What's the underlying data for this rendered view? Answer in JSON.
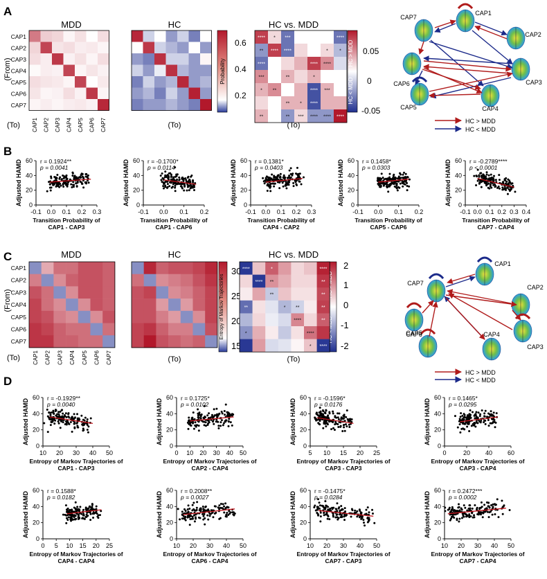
{
  "panel_letters": {
    "a": "A",
    "b": "B",
    "c": "C",
    "d": "D"
  },
  "common": {
    "from_label": "(From)",
    "to_label": "(To)",
    "caps": [
      "CAP1",
      "CAP2",
      "CAP3",
      "CAP4",
      "CAP5",
      "CAP6",
      "CAP7"
    ],
    "legend_hc_gt": "HC > MDD",
    "legend_hc_lt": "HC < MDD",
    "colors": {
      "red": "#b2182b",
      "blue": "#1f3c99",
      "arrow_red": "#b01b1b",
      "arrow_blue": "#1b2a8a"
    }
  },
  "panel_a": {
    "titles": [
      "MDD",
      "HC",
      "HC vs. MDD"
    ],
    "prob_colorbar": {
      "label": "Probability",
      "ticks": [
        "0.6",
        "0.4",
        "0.2"
      ]
    },
    "diff_colorbar": {
      "ticks": [
        "0.05",
        "0",
        "-0.05"
      ],
      "top_label": "HC > MDD",
      "bottom_label": "HC < MDD"
    },
    "mdd": [
      [
        0.42,
        0.22,
        0.2,
        0.12,
        0.17,
        0.1,
        0.18
      ],
      [
        0.2,
        0.55,
        0.16,
        0.18,
        0.14,
        0.15,
        0.12
      ],
      [
        0.18,
        0.14,
        0.58,
        0.13,
        0.17,
        0.12,
        0.18
      ],
      [
        0.11,
        0.14,
        0.13,
        0.55,
        0.12,
        0.16,
        0.13
      ],
      [
        0.18,
        0.16,
        0.15,
        0.12,
        0.55,
        0.1,
        0.15
      ],
      [
        0.16,
        0.12,
        0.13,
        0.18,
        0.13,
        0.58,
        0.12
      ],
      [
        0.12,
        0.14,
        0.12,
        0.14,
        0.15,
        0.13,
        0.62
      ]
    ],
    "hc": [
      [
        0.62,
        0.08,
        0.1,
        0.06,
        0.08,
        0.05,
        0.1
      ],
      [
        0.1,
        0.58,
        0.08,
        0.07,
        0.06,
        0.1,
        0.06
      ],
      [
        0.06,
        0.05,
        0.6,
        0.08,
        0.08,
        0.06,
        0.12
      ],
      [
        0.08,
        0.06,
        0.09,
        0.6,
        0.07,
        0.06,
        0.06
      ],
      [
        0.05,
        0.08,
        0.06,
        0.07,
        0.62,
        0.06,
        0.07
      ],
      [
        0.06,
        0.07,
        0.05,
        0.08,
        0.06,
        0.64,
        0.06
      ],
      [
        0.05,
        0.06,
        0.06,
        0.07,
        0.06,
        0.05,
        0.66
      ]
    ],
    "diff": [
      [
        0.05,
        0.01,
        -0.04,
        0.0,
        0.0,
        0.0,
        -0.04
      ],
      [
        -0.03,
        0.05,
        -0.04,
        0.01,
        0.0,
        0.01,
        -0.02
      ],
      [
        -0.04,
        0.0,
        0.01,
        0.02,
        0.05,
        0.03,
        -0.01
      ],
      [
        0.03,
        0.0,
        0.02,
        0.01,
        0.02,
        0.0,
        0.0
      ],
      [
        0.02,
        0.03,
        0.0,
        0.02,
        -0.05,
        0.02,
        0.0
      ],
      [
        0.01,
        0.0,
        0.02,
        0.02,
        -0.05,
        0.02,
        0.02
      ],
      [
        0.02,
        0.0,
        -0.03,
        0.01,
        -0.03,
        -0.03,
        0.06
      ]
    ],
    "stars": [
      [
        "****",
        "*",
        "***",
        "",
        "",
        "",
        "****"
      ],
      [
        "**",
        "****",
        "****",
        "",
        "",
        "*",
        "*"
      ],
      [
        "****",
        "",
        "",
        "",
        "****",
        "****",
        ""
      ],
      [
        "***",
        "",
        "**",
        "",
        "*",
        "",
        ""
      ],
      [
        "*",
        "**",
        "",
        "",
        "****",
        "***",
        ""
      ],
      [
        "",
        "",
        "**",
        "*",
        "****",
        "",
        ""
      ],
      [
        "**",
        "",
        "**",
        "***",
        "****",
        "****",
        "****"
      ]
    ]
  },
  "panel_b": {
    "y_label": "Adjusted HAMD",
    "x_prefix": "Transition Probability  of",
    "plots": [
      {
        "sub": "CAP1 - CAP3",
        "r": "r = 0.1924**",
        "p": "p = 0.0041",
        "x_ticks": [
          "-0.1",
          "0.0",
          "0.1",
          "0.2",
          "0.3"
        ],
        "xmin": -0.1,
        "xmax": 0.3,
        "line": [
          [
            -0.01,
            31
          ],
          [
            0.26,
            35
          ]
        ]
      },
      {
        "sub": "CAP1 - CAP6",
        "r": "r = -0.1700*",
        "p": "p = 0.0114",
        "x_ticks": [
          "-0.1",
          "0.0",
          "0.1",
          "0.2"
        ],
        "xmin": -0.1,
        "xmax": 0.2,
        "line": [
          [
            0.0,
            34
          ],
          [
            0.16,
            28
          ]
        ]
      },
      {
        "sub": "CAP4 - CAP2",
        "r": "r = 0.1381*",
        "p": "p = 0.0403",
        "x_ticks": [
          "-0.1",
          "0.0",
          "0.1",
          "0.2",
          "0.3"
        ],
        "xmin": -0.1,
        "xmax": 0.3,
        "line": [
          [
            0.0,
            31
          ],
          [
            0.24,
            36
          ]
        ]
      },
      {
        "sub": "CAP5 - CAP6",
        "r": "r = 0.1458*",
        "p": "p = 0.0303",
        "x_ticks": [
          "-0.1",
          "0.0",
          "0.1",
          "0.2"
        ],
        "xmin": -0.1,
        "xmax": 0.2,
        "line": [
          [
            0.0,
            31
          ],
          [
            0.15,
            35
          ]
        ]
      },
      {
        "sub": "CAP7 - CAP4",
        "r": "r = -0.2789****",
        "p": "p < 0.0001",
        "x_ticks": [
          "-0.1",
          "0.0",
          "0.1",
          "0.2",
          "0.3",
          "0.4"
        ],
        "xmin": -0.1,
        "xmax": 0.4,
        "line": [
          [
            0.0,
            36
          ],
          [
            0.3,
            24
          ]
        ]
      }
    ]
  },
  "panel_c": {
    "titles": [
      "MDD",
      "HC",
      "HC vs. MDD"
    ],
    "entropy_colorbar": {
      "label": "Entropy of Markov Trajectories",
      "ticks": [
        "30",
        "25",
        "20",
        "15"
      ]
    },
    "diff_colorbar": {
      "ticks": [
        "2",
        "1",
        "0",
        "-1",
        "-2"
      ],
      "top_label": "HC > MDD",
      "bottom_label": "HC < MDD"
    },
    "mdd": [
      [
        13,
        20,
        24,
        24,
        26,
        26,
        25
      ],
      [
        23,
        13,
        22,
        25,
        26,
        26,
        25
      ],
      [
        26,
        24,
        13,
        22,
        26,
        26,
        25
      ],
      [
        27,
        24,
        22,
        13,
        22,
        26,
        25
      ],
      [
        27,
        26,
        23,
        22,
        13,
        22,
        26
      ],
      [
        28,
        27,
        25,
        24,
        24,
        13,
        24
      ],
      [
        28,
        28,
        25,
        25,
        24,
        24,
        13
      ]
    ],
    "hc": [
      [
        13,
        29,
        25,
        26,
        26,
        27,
        29
      ],
      [
        24,
        13,
        22,
        23,
        24,
        26,
        28
      ],
      [
        26,
        27,
        13,
        22,
        23,
        25,
        27
      ],
      [
        26,
        26,
        21,
        13,
        21,
        25,
        27
      ],
      [
        26,
        26,
        23,
        21,
        13,
        22,
        27
      ],
      [
        27,
        28,
        25,
        23,
        23,
        13,
        26
      ],
      [
        27,
        30,
        26,
        25,
        24,
        25,
        13
      ]
    ],
    "diff": [
      [
        -2.2,
        0.6,
        1.6,
        1.0,
        0.4,
        0.6,
        2.2
      ],
      [
        0.4,
        -2.2,
        1.1,
        0.8,
        0.4,
        0.4,
        2.0
      ],
      [
        0.2,
        0.9,
        -0.6,
        0.6,
        0.3,
        0.3,
        1.8
      ],
      [
        -1.6,
        0.3,
        -0.3,
        -0.8,
        -0.5,
        0.2,
        1.9
      ],
      [
        -0.8,
        0.4,
        -0.2,
        -0.4,
        1.2,
        0.4,
        1.6
      ],
      [
        -1.2,
        0.8,
        0.2,
        -0.6,
        0.3,
        1.4,
        2.0
      ],
      [
        -2.2,
        1.0,
        -0.4,
        -0.3,
        0.1,
        0.6,
        -2.2
      ]
    ],
    "stars": [
      [
        "****",
        "",
        "*",
        "",
        "",
        "",
        "****"
      ],
      [
        "",
        "****",
        "**",
        "",
        "",
        "",
        "**"
      ],
      [
        "",
        "",
        "**",
        "",
        "",
        "",
        "**"
      ],
      [
        "**",
        "",
        "",
        "*",
        "**",
        "",
        "**"
      ],
      [
        "",
        "",
        "",
        "",
        "****",
        "",
        "**"
      ],
      [
        "*",
        "",
        "",
        "",
        "",
        "****",
        ""
      ],
      [
        "",
        "",
        "",
        "",
        "",
        "*",
        "****"
      ]
    ]
  },
  "panel_d": {
    "y_label": "Adjusted HAMD",
    "x_prefix": "Entropy of Markov Trajectories of",
    "plots": [
      {
        "sub": "CAP1 - CAP3",
        "r": "r = -0.1929**",
        "p": "p = 0.0040",
        "x_ticks": [
          "10",
          "20",
          "30",
          "40",
          "50"
        ],
        "xmin": 10,
        "xmax": 50,
        "line": [
          [
            14,
            36
          ],
          [
            40,
            28
          ]
        ]
      },
      {
        "sub": "CAP2 - CAP4",
        "r": "r = 0.1725*",
        "p": "p = 0.0102",
        "x_ticks": [
          "0",
          "10",
          "20",
          "30",
          "40",
          "50"
        ],
        "xmin": 0,
        "xmax": 50,
        "line": [
          [
            10,
            31
          ],
          [
            43,
            36
          ]
        ]
      },
      {
        "sub": "CAP3 - CAP3",
        "r": "r = -0.1596*",
        "p": "p = 0.0176",
        "x_ticks": [
          "5",
          "10",
          "15",
          "20",
          "25"
        ],
        "xmin": 5,
        "xmax": 25,
        "line": [
          [
            7,
            35
          ],
          [
            18,
            28
          ]
        ]
      },
      {
        "sub": "CAP3 - CAP4",
        "r": "r = 0.1465*",
        "p": "p = 0.0295",
        "x_ticks": [
          "0",
          "20",
          "40",
          "60"
        ],
        "xmin": 0,
        "xmax": 60,
        "line": [
          [
            14,
            30
          ],
          [
            48,
            36
          ]
        ]
      },
      {
        "sub": "CAP4 - CAP4",
        "r": "r = 0.1588*",
        "p": "p = 0.0182",
        "x_ticks": [
          "0",
          "5",
          "10",
          "15",
          "20",
          "25"
        ],
        "xmin": 0,
        "xmax": 25,
        "line": [
          [
            9,
            31
          ],
          [
            22,
            36
          ]
        ]
      },
      {
        "sub": "CAP6 - CAP4",
        "r": "r = 0.2008**",
        "p": "p = 0.0027",
        "x_ticks": [
          "10",
          "20",
          "30",
          "40",
          "50"
        ],
        "xmin": 10,
        "xmax": 50,
        "line": [
          [
            14,
            30
          ],
          [
            45,
            37
          ]
        ]
      },
      {
        "sub": "CAP7 - CAP3",
        "r": "r = -0.1475*",
        "p": "p = 0.0284",
        "x_ticks": [
          "10",
          "20",
          "30",
          "40",
          "50"
        ],
        "xmin": 10,
        "xmax": 50,
        "line": [
          [
            15,
            35
          ],
          [
            48,
            28
          ]
        ]
      },
      {
        "sub": "CAP7 - CAP4",
        "r": "r = 0.2472***",
        "p": "p = 0.0002",
        "x_ticks": [
          "10",
          "20",
          "30",
          "40",
          "50"
        ],
        "xmin": 10,
        "xmax": 50,
        "line": [
          [
            12,
            31
          ],
          [
            47,
            38
          ]
        ]
      }
    ]
  },
  "y_ticks": [
    "0",
    "20",
    "40",
    "60"
  ]
}
